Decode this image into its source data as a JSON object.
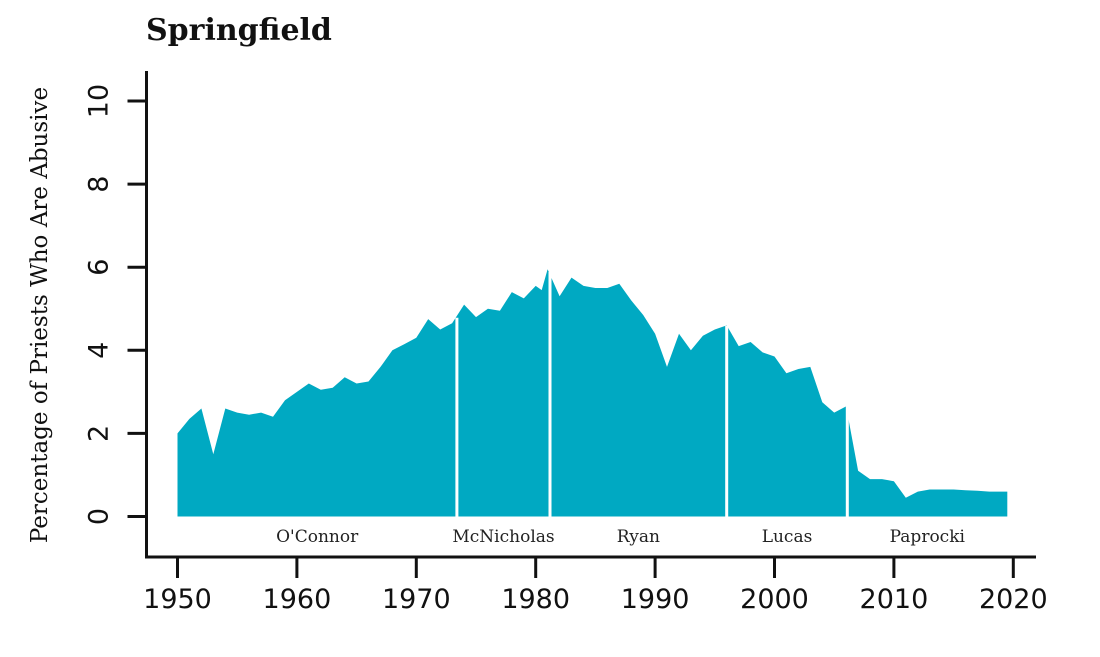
{
  "title": "Springfield",
  "colors": {
    "area": "#00A9C2",
    "axis": "#111111",
    "divider": "#ffffff",
    "background": "#ffffff"
  },
  "y_axis": {
    "label": "Percentage of Priests Who Are Abusive",
    "ticks": [
      0,
      2,
      4,
      6,
      8,
      10
    ]
  },
  "x_axis": {
    "ticks": [
      1950,
      1960,
      1970,
      1980,
      1990,
      2000,
      2010,
      2020
    ]
  },
  "chart_data": {
    "type": "area",
    "title": "Springfield",
    "xlabel": "",
    "ylabel": "Percentage of Priests Who Are Abusive",
    "xlim": [
      1950,
      2020
    ],
    "ylim": [
      0,
      10
    ],
    "grid": false,
    "legend": false,
    "x": [
      1950,
      1951,
      1952,
      1953,
      1954,
      1955,
      1956,
      1957,
      1958,
      1959,
      1960,
      1961,
      1962,
      1963,
      1964,
      1965,
      1966,
      1967,
      1968,
      1969,
      1970,
      1971,
      1972,
      1973,
      1974,
      1975,
      1976,
      1977,
      1978,
      1979,
      1980,
      1980.5,
      1981,
      1982,
      1983,
      1984,
      1985,
      1986,
      1987,
      1988,
      1989,
      1990,
      1991,
      1992,
      1993,
      1994,
      1995,
      1996,
      1997,
      1998,
      1999,
      2000,
      2001,
      2002,
      2003,
      2004,
      2005,
      2006,
      2007,
      2008,
      2009,
      2010,
      2011,
      2012,
      2013,
      2014,
      2015,
      2016,
      2017,
      2018,
      2019,
      2019.5
    ],
    "values": [
      2.0,
      2.35,
      2.6,
      1.5,
      2.6,
      2.5,
      2.45,
      2.5,
      2.4,
      2.8,
      3.0,
      3.2,
      3.05,
      3.1,
      3.35,
      3.2,
      3.25,
      3.6,
      4.0,
      4.15,
      4.3,
      4.75,
      4.5,
      4.65,
      5.1,
      4.8,
      5.0,
      4.95,
      5.4,
      5.25,
      5.55,
      5.45,
      5.95,
      5.3,
      5.75,
      5.55,
      5.5,
      5.5,
      5.6,
      5.2,
      4.85,
      4.4,
      3.6,
      4.4,
      4.0,
      4.35,
      4.5,
      4.6,
      4.1,
      4.2,
      3.95,
      3.85,
      3.45,
      3.55,
      3.6,
      2.75,
      2.5,
      2.65,
      1.1,
      0.9,
      0.9,
      0.85,
      0.45,
      0.6,
      0.65,
      0.65,
      0.65,
      0.63,
      0.62,
      0.6,
      0.6,
      0.6
    ],
    "tenures": [
      {
        "name": "O'Connor",
        "start": 1950,
        "end": 1973.4
      },
      {
        "name": "McNicholas",
        "start": 1973.4,
        "end": 1981.2
      },
      {
        "name": "Ryan",
        "start": 1981.2,
        "end": 1996.0
      },
      {
        "name": "Lucas",
        "start": 1996.0,
        "end": 2006.1
      },
      {
        "name": "Paprocki",
        "start": 2006.1,
        "end": 2019.5
      }
    ]
  }
}
